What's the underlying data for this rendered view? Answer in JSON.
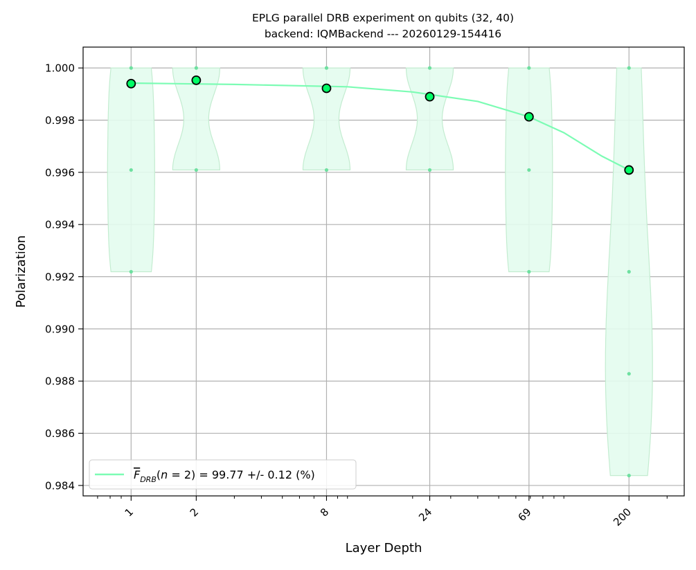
{
  "chart_data": {
    "type": "scatter",
    "title": "EPLG parallel DRB experiment on qubits (32, 40)",
    "subtitle": "backend: IQMBackend --- 20260129-154416",
    "xlabel": "Layer Depth",
    "ylabel": "Polarization",
    "x_scale": "log",
    "xlim": [
      0.6,
      360
    ],
    "ylim": [
      0.9836,
      1.0008
    ],
    "x_ticks": [
      1,
      2,
      8,
      24,
      69,
      200
    ],
    "x_tick_labels": [
      "1",
      "2",
      "8",
      "24",
      "69",
      "200"
    ],
    "y_ticks": [
      0.984,
      0.986,
      0.988,
      0.99,
      0.992,
      0.994,
      0.996,
      0.998,
      1.0
    ],
    "y_tick_labels": [
      "0.984",
      "0.986",
      "0.988",
      "0.990",
      "0.992",
      "0.994",
      "0.996",
      "0.998",
      "1.000"
    ],
    "grid": true,
    "legend_position": "lower-left",
    "colors": {
      "fit": "#7cfcb4",
      "violin_fill": "#e3fcee",
      "violin_edge": "#c3ecd0",
      "marker": "#00ff66",
      "samples": "#6ee0a0"
    },
    "series": [
      {
        "kind": "mean",
        "x": [
          1,
          2,
          8,
          24,
          69,
          200
        ],
        "y": [
          0.9994,
          0.99953,
          0.99922,
          0.9989,
          0.99813,
          0.99609
        ]
      },
      {
        "kind": "fit",
        "legend": "= 99.77 +/- 0.12 (%)",
        "x": [
          1,
          3,
          10,
          20,
          40,
          69,
          100,
          150,
          200
        ],
        "y": [
          0.99942,
          0.99937,
          0.99928,
          0.99908,
          0.99872,
          0.99813,
          0.99752,
          0.99662,
          0.99609
        ]
      }
    ],
    "samples": [
      {
        "x": 1,
        "y": [
          1.0,
          0.99609,
          0.99219
        ]
      },
      {
        "x": 2,
        "y": [
          1.0,
          0.99609
        ]
      },
      {
        "x": 8,
        "y": [
          1.0,
          0.99609
        ]
      },
      {
        "x": 24,
        "y": [
          1.0,
          0.99609
        ]
      },
      {
        "x": 69,
        "y": [
          1.0,
          0.99609,
          0.99219
        ]
      },
      {
        "x": 200,
        "y": [
          1.0,
          0.99219,
          0.98828,
          0.98438
        ]
      }
    ]
  }
}
